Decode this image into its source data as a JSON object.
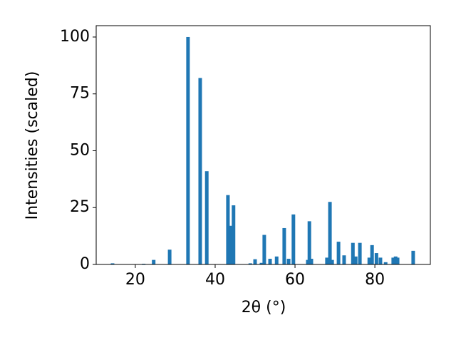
{
  "chart_data": {
    "type": "bar",
    "xlabel": "2θ (°)",
    "ylabel": "Intensities (scaled)",
    "x": [
      14.3,
      22.1,
      24.6,
      28.6,
      33.2,
      36.25,
      37.9,
      43.2,
      43.9,
      44.6,
      48.8,
      50.0,
      51.6,
      52.3,
      53.75,
      55.4,
      57.3,
      58.4,
      59.6,
      63.2,
      63.6,
      64.1,
      68.0,
      68.75,
      69.3,
      70.9,
      72.3,
      74.5,
      75.2,
      76.25,
      78.6,
      79.3,
      80.4,
      81.4,
      82.7,
      84.6,
      85.2,
      85.7,
      89.6
    ],
    "values": [
      0.5,
      0.3,
      2,
      6.5,
      100,
      82,
      41,
      30.5,
      17,
      26,
      0.5,
      2.3,
      0.7,
      13,
      2.5,
      3.5,
      16,
      2.5,
      22,
      2,
      19,
      2.5,
      3,
      27.5,
      2,
      10,
      4,
      9.5,
      3.5,
      9.5,
      3,
      8.5,
      5,
      3,
      1,
      3,
      3.5,
      3,
      6
    ],
    "color": "#1f77b4",
    "xlim": [
      10.2,
      93.9
    ],
    "xticks": [
      20,
      40,
      60,
      80
    ],
    "ylim": [
      0,
      105
    ],
    "yticks": [
      0,
      25,
      50,
      75,
      100
    ]
  }
}
